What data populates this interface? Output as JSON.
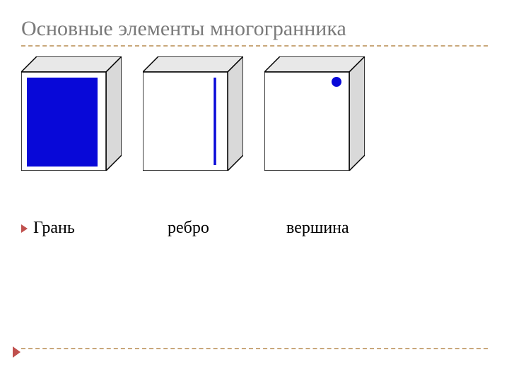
{
  "title": {
    "text": "Основные элементы многогранника",
    "color": "#7a7a7a",
    "fontsize": 30,
    "underline_color": "#c9a77a"
  },
  "cubes": {
    "stroke": "#000000",
    "stroke_width": 1.5,
    "front_fill": "#ffffff",
    "top_fill": "#e8e8e8",
    "side_fill": "#d9d9d9",
    "highlight_color": "#0808d8",
    "depth": 22,
    "front_w": 120,
    "front_h": 140,
    "items": [
      {
        "type": "face"
      },
      {
        "type": "edge"
      },
      {
        "type": "vertex"
      }
    ]
  },
  "labels": {
    "bullet_color": "#c0504d",
    "fontsize": 24,
    "items": [
      "Грань",
      "ребро",
      "вершина"
    ]
  },
  "footer": {
    "line_color": "#c9a77a",
    "marker_color": "#c0504d"
  }
}
